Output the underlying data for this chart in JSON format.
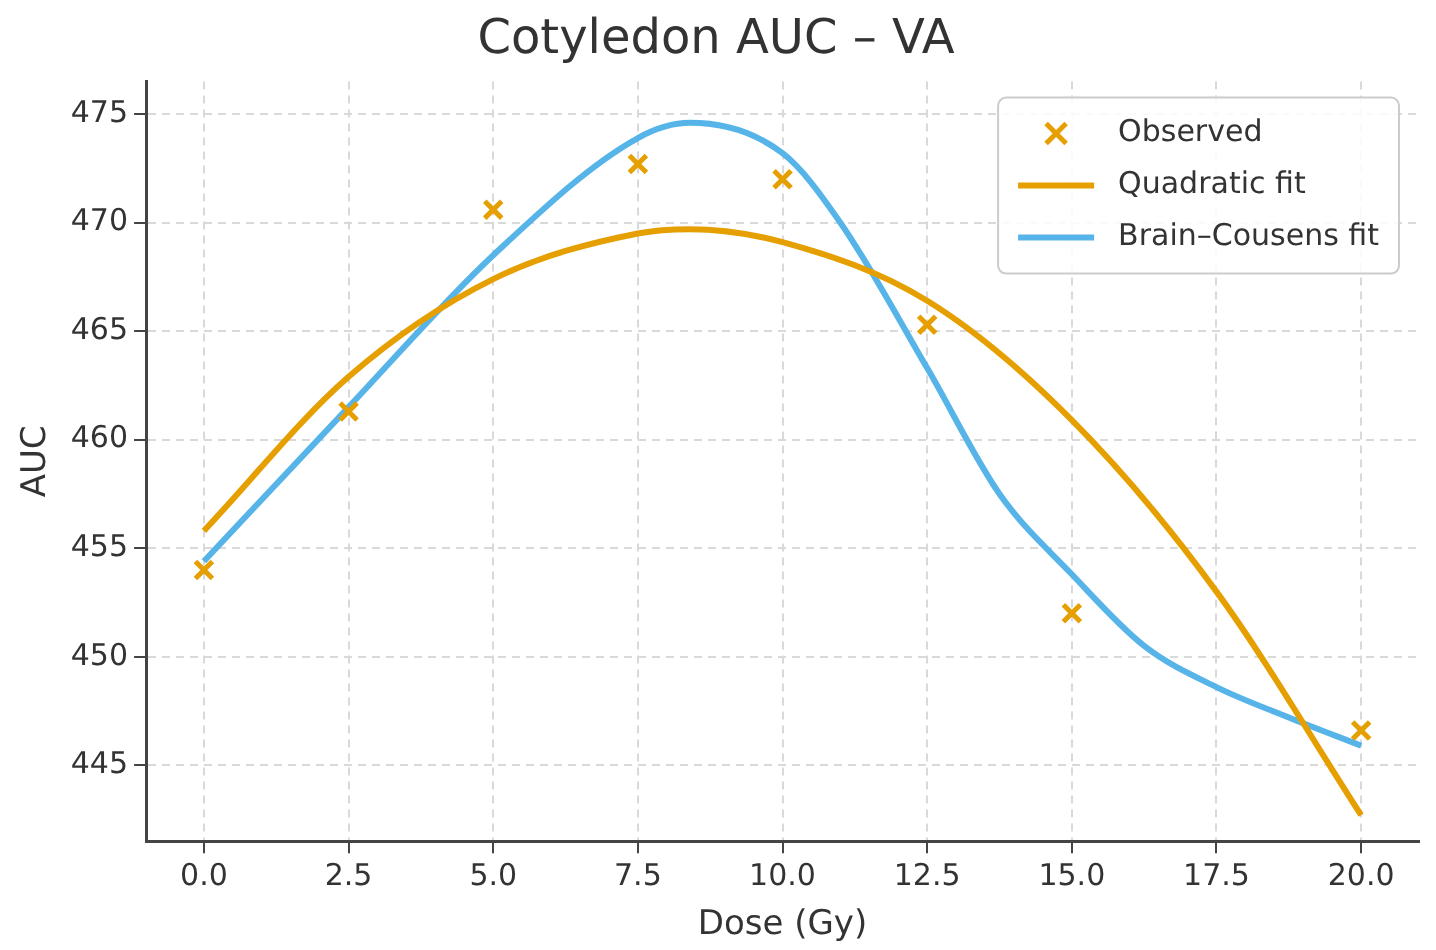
{
  "chart_data": {
    "type": "scatter",
    "title": "Cotyledon AUC – VA",
    "xlabel": "Dose (Gy)",
    "ylabel": "AUC",
    "xlim": [
      -1,
      21
    ],
    "xticks": [
      {
        "value": 0,
        "label": "0.0"
      },
      {
        "value": 2.5,
        "label": "2.5"
      },
      {
        "value": 5,
        "label": "5.0"
      },
      {
        "value": 7.5,
        "label": "7.5"
      },
      {
        "value": 10,
        "label": "10.0"
      },
      {
        "value": 12.5,
        "label": "12.5"
      },
      {
        "value": 15,
        "label": "15.0"
      },
      {
        "value": 17.5,
        "label": "17.5"
      },
      {
        "value": 20,
        "label": "20.0"
      }
    ],
    "ylim": [
      441.5,
      476.5
    ],
    "yticks": [
      445,
      450,
      455,
      460,
      465,
      470,
      475
    ],
    "grid": true,
    "legend": "top right",
    "series": [
      {
        "name": "Observed",
        "marker": "cross",
        "color": "#e69f00",
        "x": [
          0,
          2.5,
          5,
          7.5,
          10,
          12.5,
          15,
          20
        ],
        "values": [
          454.0,
          461.3,
          470.6,
          472.7,
          472.0,
          465.3,
          452.0,
          446.6
        ]
      },
      {
        "name": "Quadratic fit",
        "type": "line",
        "marker": "none",
        "line_style": "solid",
        "color": "#e69f00",
        "x": [
          0,
          2.5,
          5,
          7.5,
          8.4,
          10,
          12.5,
          15,
          17.5,
          20
        ],
        "values": [
          455.8,
          462.9,
          467.4,
          469.5,
          469.7,
          469.1,
          466.4,
          460.9,
          453.0,
          442.7
        ]
      },
      {
        "name": "Brain–Cousens fit",
        "type": "line",
        "marker": "none",
        "line_style": "solid",
        "color": "#56b4e9",
        "x": [
          0,
          2.5,
          5,
          7.5,
          8.4,
          10,
          11,
          12.5,
          13.75,
          15,
          16.25,
          17.5,
          18.75,
          20
        ],
        "values": [
          454.4,
          461.5,
          468.5,
          473.9,
          474.6,
          473.2,
          470.0,
          463.3,
          457.5,
          453.8,
          450.5,
          448.6,
          447.2,
          445.9
        ]
      }
    ]
  }
}
